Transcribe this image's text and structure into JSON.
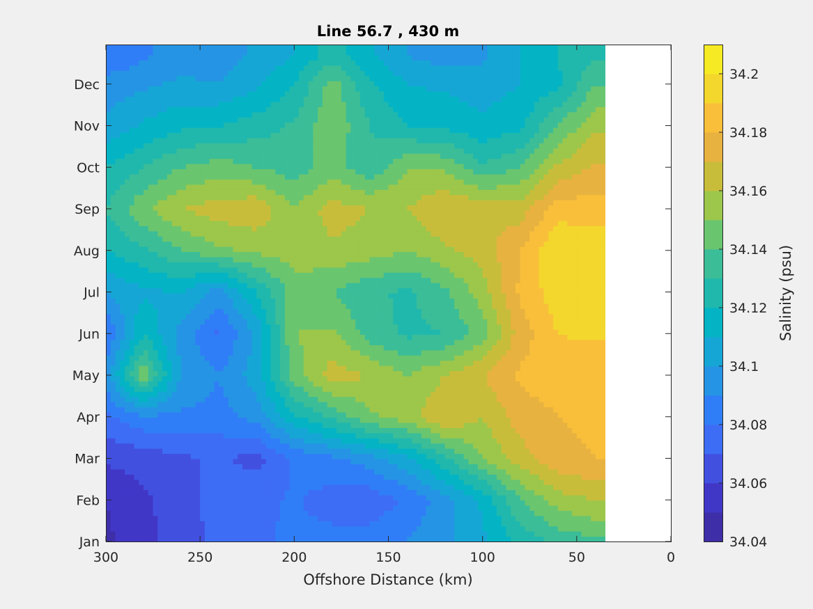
{
  "chart_data": {
    "type": "heatmap",
    "title": "Line 56.7 , 430 m",
    "xlabel": "Offshore Distance (km)",
    "ylabel": "",
    "x_reversed": true,
    "xlim": [
      0,
      300
    ],
    "x_ticks": [
      300,
      250,
      200,
      150,
      100,
      50,
      0
    ],
    "y_ticks": [
      "Jan",
      "Feb",
      "Mar",
      "Apr",
      "May",
      "Jun",
      "Jul",
      "Aug",
      "Sep",
      "Oct",
      "Nov",
      "Dec"
    ],
    "data_x_extent": [
      35,
      300
    ],
    "colorbar": {
      "label": "Salinity (psu)",
      "range": [
        34.04,
        34.21
      ],
      "ticks": [
        "34.04",
        "34.06",
        "34.08",
        "34.1",
        "34.12",
        "34.14",
        "34.16",
        "34.18",
        "34.2"
      ],
      "levels": [
        34.04,
        34.05,
        34.06,
        34.07,
        34.08,
        34.09,
        34.1,
        34.11,
        34.12,
        34.13,
        34.14,
        34.15,
        34.16,
        34.17,
        34.18,
        34.19,
        34.2,
        34.21
      ],
      "colors": [
        "#3e2fa9",
        "#4137c7",
        "#4250e0",
        "#3e6df5",
        "#307ef7",
        "#2694e4",
        "#16a6d6",
        "#04b4c4",
        "#20b8ad",
        "#3bbd98",
        "#6ac56f",
        "#9cc74b",
        "#c8bd3a",
        "#e8b240",
        "#f9bf3a",
        "#f3d72d",
        "#f5ea24"
      ]
    },
    "x": [
      300,
      280,
      260,
      240,
      220,
      200,
      180,
      160,
      140,
      120,
      100,
      80,
      60,
      40
    ],
    "months": [
      1,
      2,
      3,
      4,
      5,
      6,
      7,
      8,
      9,
      10,
      11,
      12,
      12.7
    ],
    "z": [
      [
        34.048,
        34.056,
        34.066,
        34.072,
        34.078,
        34.082,
        34.083,
        34.085,
        34.09,
        34.098,
        34.108,
        34.123,
        34.133,
        34.138
      ],
      [
        34.05,
        34.058,
        34.066,
        34.074,
        34.078,
        34.081,
        34.076,
        34.073,
        34.082,
        34.095,
        34.112,
        34.14,
        34.155,
        34.16
      ],
      [
        34.062,
        34.064,
        34.068,
        34.072,
        34.066,
        34.082,
        34.088,
        34.095,
        34.108,
        34.128,
        34.15,
        34.165,
        34.178,
        34.18
      ],
      [
        34.078,
        34.088,
        34.088,
        34.086,
        34.094,
        34.118,
        34.132,
        34.148,
        34.155,
        34.17,
        34.16,
        34.175,
        34.18,
        34.182
      ],
      [
        34.095,
        34.148,
        34.1,
        34.09,
        34.105,
        34.145,
        34.165,
        34.16,
        34.15,
        34.16,
        34.17,
        34.182,
        34.185,
        34.18
      ],
      [
        34.08,
        34.12,
        34.095,
        34.078,
        34.102,
        34.15,
        34.152,
        34.135,
        34.128,
        34.13,
        34.145,
        34.175,
        34.19,
        34.192
      ],
      [
        34.1,
        34.108,
        34.11,
        34.095,
        34.12,
        34.145,
        34.14,
        34.132,
        34.128,
        34.138,
        34.155,
        34.182,
        34.196,
        34.198
      ],
      [
        34.12,
        34.128,
        34.14,
        34.148,
        34.152,
        34.155,
        34.158,
        34.155,
        34.15,
        34.158,
        34.165,
        34.18,
        34.2,
        34.198
      ],
      [
        34.13,
        34.148,
        34.16,
        34.165,
        34.168,
        34.15,
        34.165,
        34.16,
        34.16,
        34.17,
        34.168,
        34.165,
        34.185,
        34.185
      ],
      [
        34.12,
        34.13,
        34.14,
        34.145,
        34.14,
        34.135,
        34.145,
        34.132,
        34.15,
        34.148,
        34.132,
        34.14,
        34.162,
        34.172
      ],
      [
        34.102,
        34.112,
        34.118,
        34.12,
        34.125,
        34.132,
        34.148,
        34.13,
        34.12,
        34.118,
        34.112,
        34.118,
        34.14,
        34.158
      ],
      [
        34.095,
        34.098,
        34.102,
        34.1,
        34.108,
        34.12,
        34.145,
        34.122,
        34.11,
        34.108,
        34.105,
        34.11,
        34.118,
        34.14
      ],
      [
        34.08,
        34.088,
        34.095,
        34.095,
        34.102,
        34.11,
        34.125,
        34.112,
        34.1,
        34.095,
        34.098,
        34.11,
        34.12,
        34.128
      ]
    ]
  }
}
